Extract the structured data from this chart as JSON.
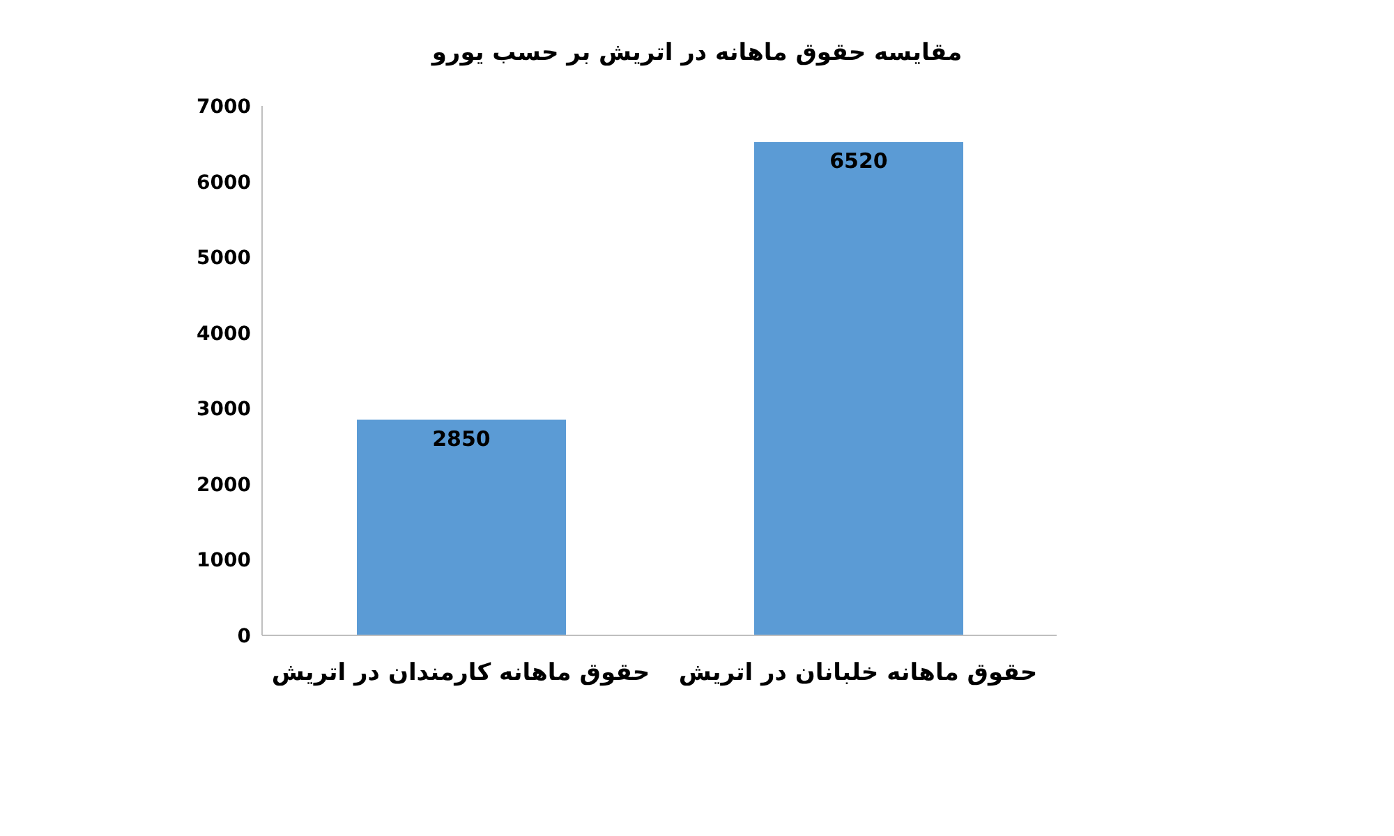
{
  "chart_data": {
    "type": "bar",
    "title": "مقایسه حقوق ماهانه در اتریش بر حسب یورو",
    "categories": [
      "حقوق ماهانه کارمندان در اتریش",
      "حقوق ماهانه خلبانان در اتریش"
    ],
    "values": [
      2850,
      6520
    ],
    "color": "#5b9bd5",
    "ylim": [
      0,
      7000
    ],
    "yticks": [
      0,
      1000,
      2000,
      3000,
      4000,
      5000,
      6000,
      7000
    ],
    "grid": false,
    "data_labels": true
  }
}
